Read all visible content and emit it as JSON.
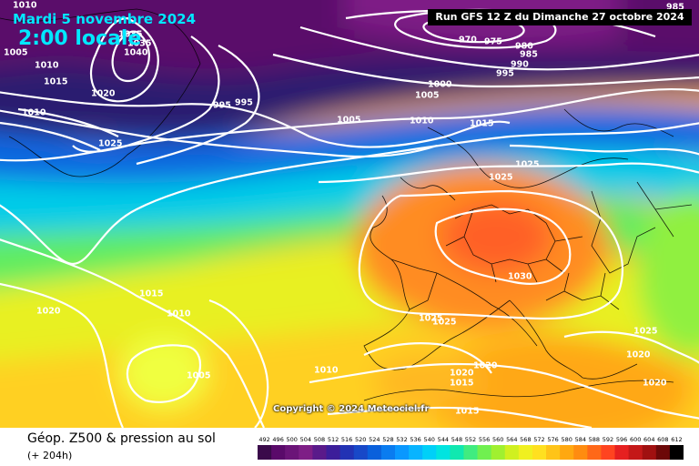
{
  "header": {
    "date": "Mardi 5 novembre 2024",
    "time": "2:00 locale",
    "run": "Run GFS 12 Z du Dimanche 27 octobre 2024"
  },
  "copyright": "Copyright © 2024 Meteociel.fr",
  "footer": {
    "title": "Géop. Z500 & pression au sol",
    "subtitle": "(+ 204h)"
  },
  "legend": {
    "values": [
      "492",
      "496",
      "500",
      "504",
      "508",
      "512",
      "516",
      "520",
      "524",
      "528",
      "532",
      "536",
      "540",
      "544",
      "548",
      "552",
      "556",
      "560",
      "564",
      "568",
      "572",
      "576",
      "580",
      "584",
      "588",
      "592",
      "596",
      "600",
      "604",
      "608",
      "612"
    ],
    "colors": [
      "#3a0a4a",
      "#5a0a6a",
      "#6b1478",
      "#7e1e86",
      "#5a1a8a",
      "#3c1e9a",
      "#2232b4",
      "#1848c8",
      "#0a60dc",
      "#0a7cf0",
      "#0a98ff",
      "#08b4ff",
      "#00d0f8",
      "#00e4e0",
      "#10e8b0",
      "#40ec80",
      "#70f050",
      "#a0f030",
      "#d0f020",
      "#f0f020",
      "#ffe020",
      "#ffc418",
      "#ffa810",
      "#ff8c10",
      "#ff6818",
      "#ff4420",
      "#e62020",
      "#c41818",
      "#a01010",
      "#6c0808",
      "#000000"
    ]
  },
  "isobar_labels": [
    {
      "text": "1010"
    },
    {
      "text": "985"
    },
    {
      "text": "1005"
    },
    {
      "text": "1010"
    },
    {
      "text": "1035"
    },
    {
      "text": "1035"
    },
    {
      "text": "1040"
    },
    {
      "text": "1015"
    },
    {
      "text": "1020"
    },
    {
      "text": "1010"
    },
    {
      "text": "995"
    },
    {
      "text": "995"
    },
    {
      "text": "1025"
    },
    {
      "text": "970"
    },
    {
      "text": "975"
    },
    {
      "text": "980"
    },
    {
      "text": "985"
    },
    {
      "text": "990"
    },
    {
      "text": "995"
    },
    {
      "text": "1000"
    },
    {
      "text": "1005"
    },
    {
      "text": "1005"
    },
    {
      "text": "1010"
    },
    {
      "text": "1015"
    },
    {
      "text": "1025"
    },
    {
      "text": "1025"
    },
    {
      "text": "1015"
    },
    {
      "text": "1020"
    },
    {
      "text": "1010"
    },
    {
      "text": "1005"
    },
    {
      "text": "1010"
    },
    {
      "text": "1030"
    },
    {
      "text": "1025"
    },
    {
      "text": "1025"
    },
    {
      "text": "1025"
    },
    {
      "text": "1020"
    },
    {
      "text": "1020"
    },
    {
      "text": "1020"
    },
    {
      "text": "1015"
    },
    {
      "text": "1015"
    },
    {
      "text": "1020"
    }
  ]
}
